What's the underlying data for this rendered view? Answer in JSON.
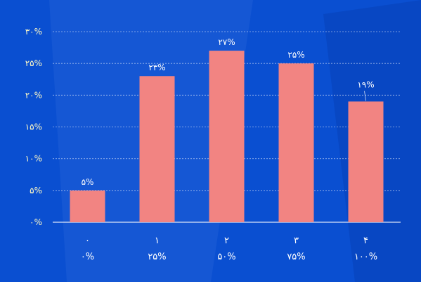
{
  "colors": {
    "background": "#0a4fd1",
    "background_shape_light": "#2a68db",
    "background_shape_dark": "#0842b8",
    "bar": "#f28482",
    "gridline": "#ffffff",
    "y_tick_text": "#fff9c4",
    "x_tick_text": "#ffffff",
    "data_label_text": "#ffffff"
  },
  "chart_data": {
    "type": "bar",
    "title": "",
    "xlabel": "",
    "ylabel": "",
    "categories": [
      "۰",
      "۱",
      "۲",
      "۳",
      "۴"
    ],
    "category_sublabels": [
      "۰%",
      "۲۵%",
      "۵۰%",
      "۷۵%",
      "۱۰۰%"
    ],
    "values": [
      5,
      23,
      27,
      25,
      19
    ],
    "value_labels": [
      "۵%",
      "۲۳%",
      "۲۷%",
      "۲۵%",
      "۱۹%"
    ],
    "ylim": [
      0,
      30
    ],
    "yticks": [
      0,
      5,
      10,
      15,
      20,
      25,
      30
    ],
    "ytick_labels": [
      "۰%",
      "۵%",
      "۱۰%",
      "۱۵%",
      "۲۰%",
      "۲۵%",
      "۳۰%"
    ],
    "grid": true,
    "legend": "none"
  }
}
